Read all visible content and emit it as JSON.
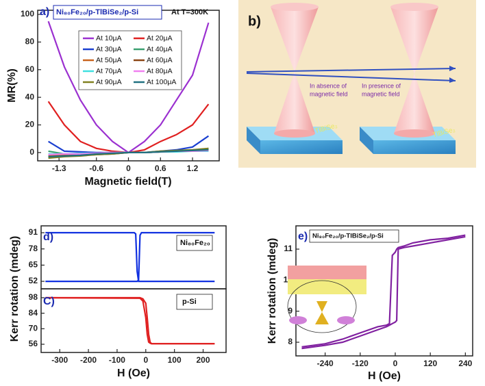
{
  "chart_data": [
    {
      "type": "line",
      "label": "a)",
      "title": "Ni₈₀Fe₂₀/p-TlBiSe₂/p-Si",
      "annotation": "At T=300K",
      "xlabel": "Magnetic field(T)",
      "ylabel": "MR(%)",
      "x": [
        -1.5,
        -1.2,
        -0.9,
        -0.6,
        -0.3,
        0,
        0.3,
        0.6,
        0.9,
        1.2,
        1.5
      ],
      "xlim": [
        -1.7,
        1.7
      ],
      "xticks": [
        -1.3,
        -0.6,
        0,
        0.6,
        1.2
      ],
      "ylim": [
        -6,
        103
      ],
      "yticks": [
        0,
        20,
        40,
        60,
        80,
        100
      ],
      "series": [
        {
          "name": "At 10μA",
          "color": "#9b30d0",
          "values": [
            95,
            62,
            38,
            20,
            8,
            0,
            8,
            20,
            38,
            56,
            94
          ]
        },
        {
          "name": "At 20μA",
          "color": "#e02020",
          "values": [
            37,
            20,
            8,
            3,
            1,
            0,
            2,
            8,
            13,
            20,
            35
          ]
        },
        {
          "name": "At 30μA",
          "color": "#1a3fd0",
          "values": [
            8,
            1,
            0.5,
            0,
            0,
            0,
            0,
            1,
            2,
            4,
            12
          ]
        },
        {
          "name": "At 40μA",
          "color": "#3aa070",
          "values": [
            1,
            -1,
            -1.5,
            -1,
            -0.5,
            0,
            0,
            0.5,
            1,
            1.5,
            3
          ]
        },
        {
          "name": "At 50μA",
          "color": "#c8641e",
          "values": [
            -2,
            -2,
            -1.5,
            -1,
            -0.5,
            0,
            0,
            0.5,
            1,
            1.5,
            2
          ]
        },
        {
          "name": "At 60μA",
          "color": "#8b4513",
          "values": [
            -3,
            -2.5,
            -2,
            -1.5,
            -1,
            0,
            0,
            0.5,
            1,
            1.5,
            2.5
          ]
        },
        {
          "name": "At 70μA",
          "color": "#40e0e0",
          "values": [
            -1,
            -1,
            -0.5,
            -0.5,
            0,
            0,
            0,
            0.5,
            0.5,
            1,
            1
          ]
        },
        {
          "name": "At 80μA",
          "color": "#f080f0",
          "values": [
            -1.5,
            -1,
            -1,
            -0.5,
            0,
            0,
            0,
            0.5,
            1,
            1,
            1.5
          ]
        },
        {
          "name": "At 90μA",
          "color": "#808020",
          "values": [
            -4,
            -3,
            -2.5,
            -1.5,
            -1,
            0,
            0,
            1,
            1.5,
            2,
            3
          ]
        },
        {
          "name": "At 100μA",
          "color": "#207080",
          "values": [
            -3,
            -2.5,
            -2,
            -1,
            -0.5,
            0,
            0,
            0.5,
            1,
            1.5,
            2
          ]
        }
      ]
    },
    {
      "type": "line",
      "label": "d)",
      "annotation": "Ni₈₀Fe₂₀",
      "ylabel": "Kerr rotation (mdeg)",
      "x": [
        -350,
        -40,
        -35,
        -30,
        -25,
        -20,
        -15,
        240
      ],
      "xlim": [
        -365,
        280
      ],
      "ylim": [
        46,
        96.5
      ],
      "yticks": [
        52,
        65,
        78,
        91
      ],
      "series": [
        {
          "color": "#1030e0",
          "values": [
            52,
            52,
            52,
            52,
            53,
            89,
            91,
            91
          ]
        },
        {
          "color": "#1030e0",
          "values": [
            91,
            91,
            90,
            60,
            52,
            52,
            52,
            52
          ]
        }
      ]
    },
    {
      "type": "line",
      "label": "C)",
      "annotation": "p-Si",
      "xlabel": "H (Oe)",
      "x": [
        -350,
        -20,
        -10,
        0,
        5,
        10,
        15,
        20,
        240
      ],
      "xlim": [
        -365,
        280
      ],
      "xticks": [
        -300,
        -200,
        -100,
        0,
        100,
        200
      ],
      "ylim": [
        48.6,
        106
      ],
      "yticks": [
        56,
        70,
        84,
        98
      ],
      "series": [
        {
          "color": "#e02020",
          "values": [
            98,
            98,
            97,
            93,
            80,
            65,
            58,
            56.5,
            56.5
          ]
        },
        {
          "color": "#e02020",
          "values": [
            98,
            97.5,
            95,
            80,
            65,
            58,
            57,
            56.5,
            56.5
          ]
        }
      ]
    },
    {
      "type": "line",
      "label": "e)",
      "title": "Ni₈₀Fe₂₀/p-TlBiSe₂/p-Si",
      "xlabel": "H (Oe)",
      "ylabel": "Kerr rotation (mdeg)",
      "x": [
        -320,
        -240,
        -180,
        -120,
        -60,
        -30,
        -20,
        -10,
        0,
        5,
        10,
        30,
        60,
        120,
        180,
        240
      ],
      "xlim": [
        -340,
        265
      ],
      "xticks": [
        -240,
        -120,
        0,
        120,
        240
      ],
      "ylim": [
        7.56,
        11.75
      ],
      "yticks": [
        8,
        9,
        10,
        11
      ],
      "series": [
        {
          "color": "#8020a0",
          "values": [
            7.8,
            7.9,
            8.0,
            8.2,
            8.4,
            8.5,
            8.55,
            8.6,
            8.65,
            8.7,
            11.0,
            11.05,
            11.1,
            11.2,
            11.3,
            11.4
          ]
        },
        {
          "color": "#8020a0",
          "values": [
            7.85,
            7.95,
            8.1,
            8.3,
            8.5,
            8.55,
            8.6,
            10.8,
            10.9,
            11.0,
            11.05,
            11.1,
            11.2,
            11.3,
            11.35,
            11.45
          ]
        }
      ]
    }
  ],
  "diagram": {
    "label": "b)",
    "left_caption": [
      "In absence of",
      "magnetic field"
    ],
    "right_caption": [
      "In presence of",
      "magnetic field"
    ],
    "material": "TlBiSe₂"
  }
}
